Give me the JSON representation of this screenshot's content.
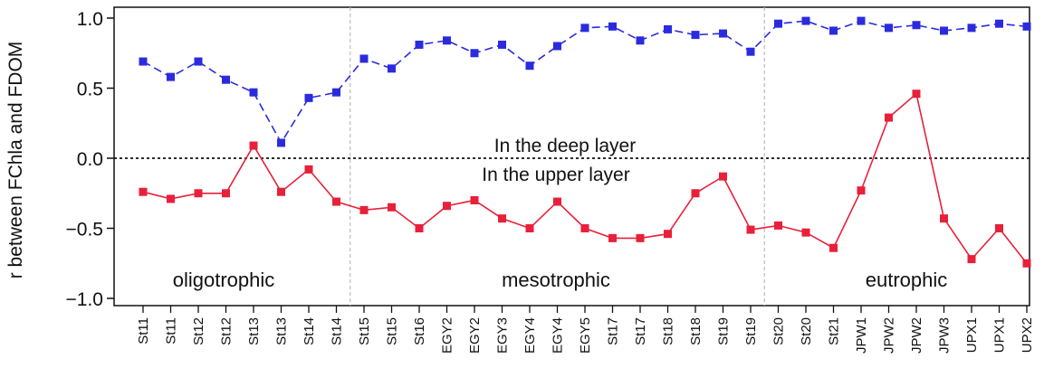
{
  "chart_data": {
    "type": "line",
    "title": "",
    "xlabel": "",
    "ylabel": "r between FChla and FDOM",
    "ylim": [
      -1.1,
      1.1
    ],
    "yticks": [
      -1.0,
      -0.5,
      0.0,
      0.5,
      1.0
    ],
    "ytick_labels": [
      "−1.0",
      "−0.5",
      "0.0",
      "0.5",
      "1.0"
    ],
    "grid": false,
    "legend": "center, inline text labels",
    "categories": [
      "St11",
      "St11",
      "St12",
      "St12",
      "St13",
      "St13",
      "St14",
      "St14",
      "St15",
      "St15",
      "St16",
      "EGY2",
      "EGY2",
      "EGY3",
      "EGY4",
      "EGY4",
      "EGY5",
      "St17",
      "St17",
      "St18",
      "St18",
      "St19",
      "St19",
      "St20",
      "St20",
      "St21",
      "JPW1",
      "JPW2",
      "JPW2",
      "JPW3",
      "UPX1",
      "UPX1",
      "UPX2"
    ],
    "series": [
      {
        "name": "In the deep layer",
        "color": "#2b2bde",
        "marker": "square",
        "line_style": "dashed",
        "values": [
          0.69,
          0.58,
          0.69,
          0.56,
          0.47,
          0.11,
          0.43,
          0.47,
          0.71,
          0.64,
          0.81,
          0.84,
          0.75,
          0.81,
          0.66,
          0.8,
          0.93,
          0.94,
          0.84,
          0.92,
          0.88,
          0.89,
          0.76,
          0.96,
          0.98,
          0.91,
          0.98,
          0.93,
          0.95,
          0.91,
          0.93,
          0.96,
          0.94
        ]
      },
      {
        "name": "In the upper layer",
        "color": "#e8203a",
        "marker": "square",
        "line_style": "solid",
        "values": [
          -0.24,
          -0.29,
          -0.25,
          -0.25,
          0.09,
          -0.24,
          -0.08,
          -0.31,
          -0.37,
          -0.35,
          -0.5,
          -0.34,
          -0.3,
          -0.43,
          -0.5,
          -0.31,
          -0.5,
          -0.57,
          -0.57,
          -0.54,
          -0.25,
          -0.13,
          -0.51,
          -0.48,
          -0.53,
          -0.64,
          -0.23,
          0.29,
          0.46,
          -0.43,
          -0.72,
          -0.5,
          -0.75
        ]
      }
    ],
    "reference_line": {
      "y": 0.0,
      "style": "dotted",
      "color": "#111111"
    },
    "regions": [
      {
        "label": "oligotrophic",
        "start_index": 0,
        "end_index": 7
      },
      {
        "label": "mesotrophic",
        "start_index": 8,
        "end_index": 22
      },
      {
        "label": "eutrophic",
        "start_index": 23,
        "end_index": 32
      }
    ],
    "region_separator_color": "#bbbbbb"
  }
}
